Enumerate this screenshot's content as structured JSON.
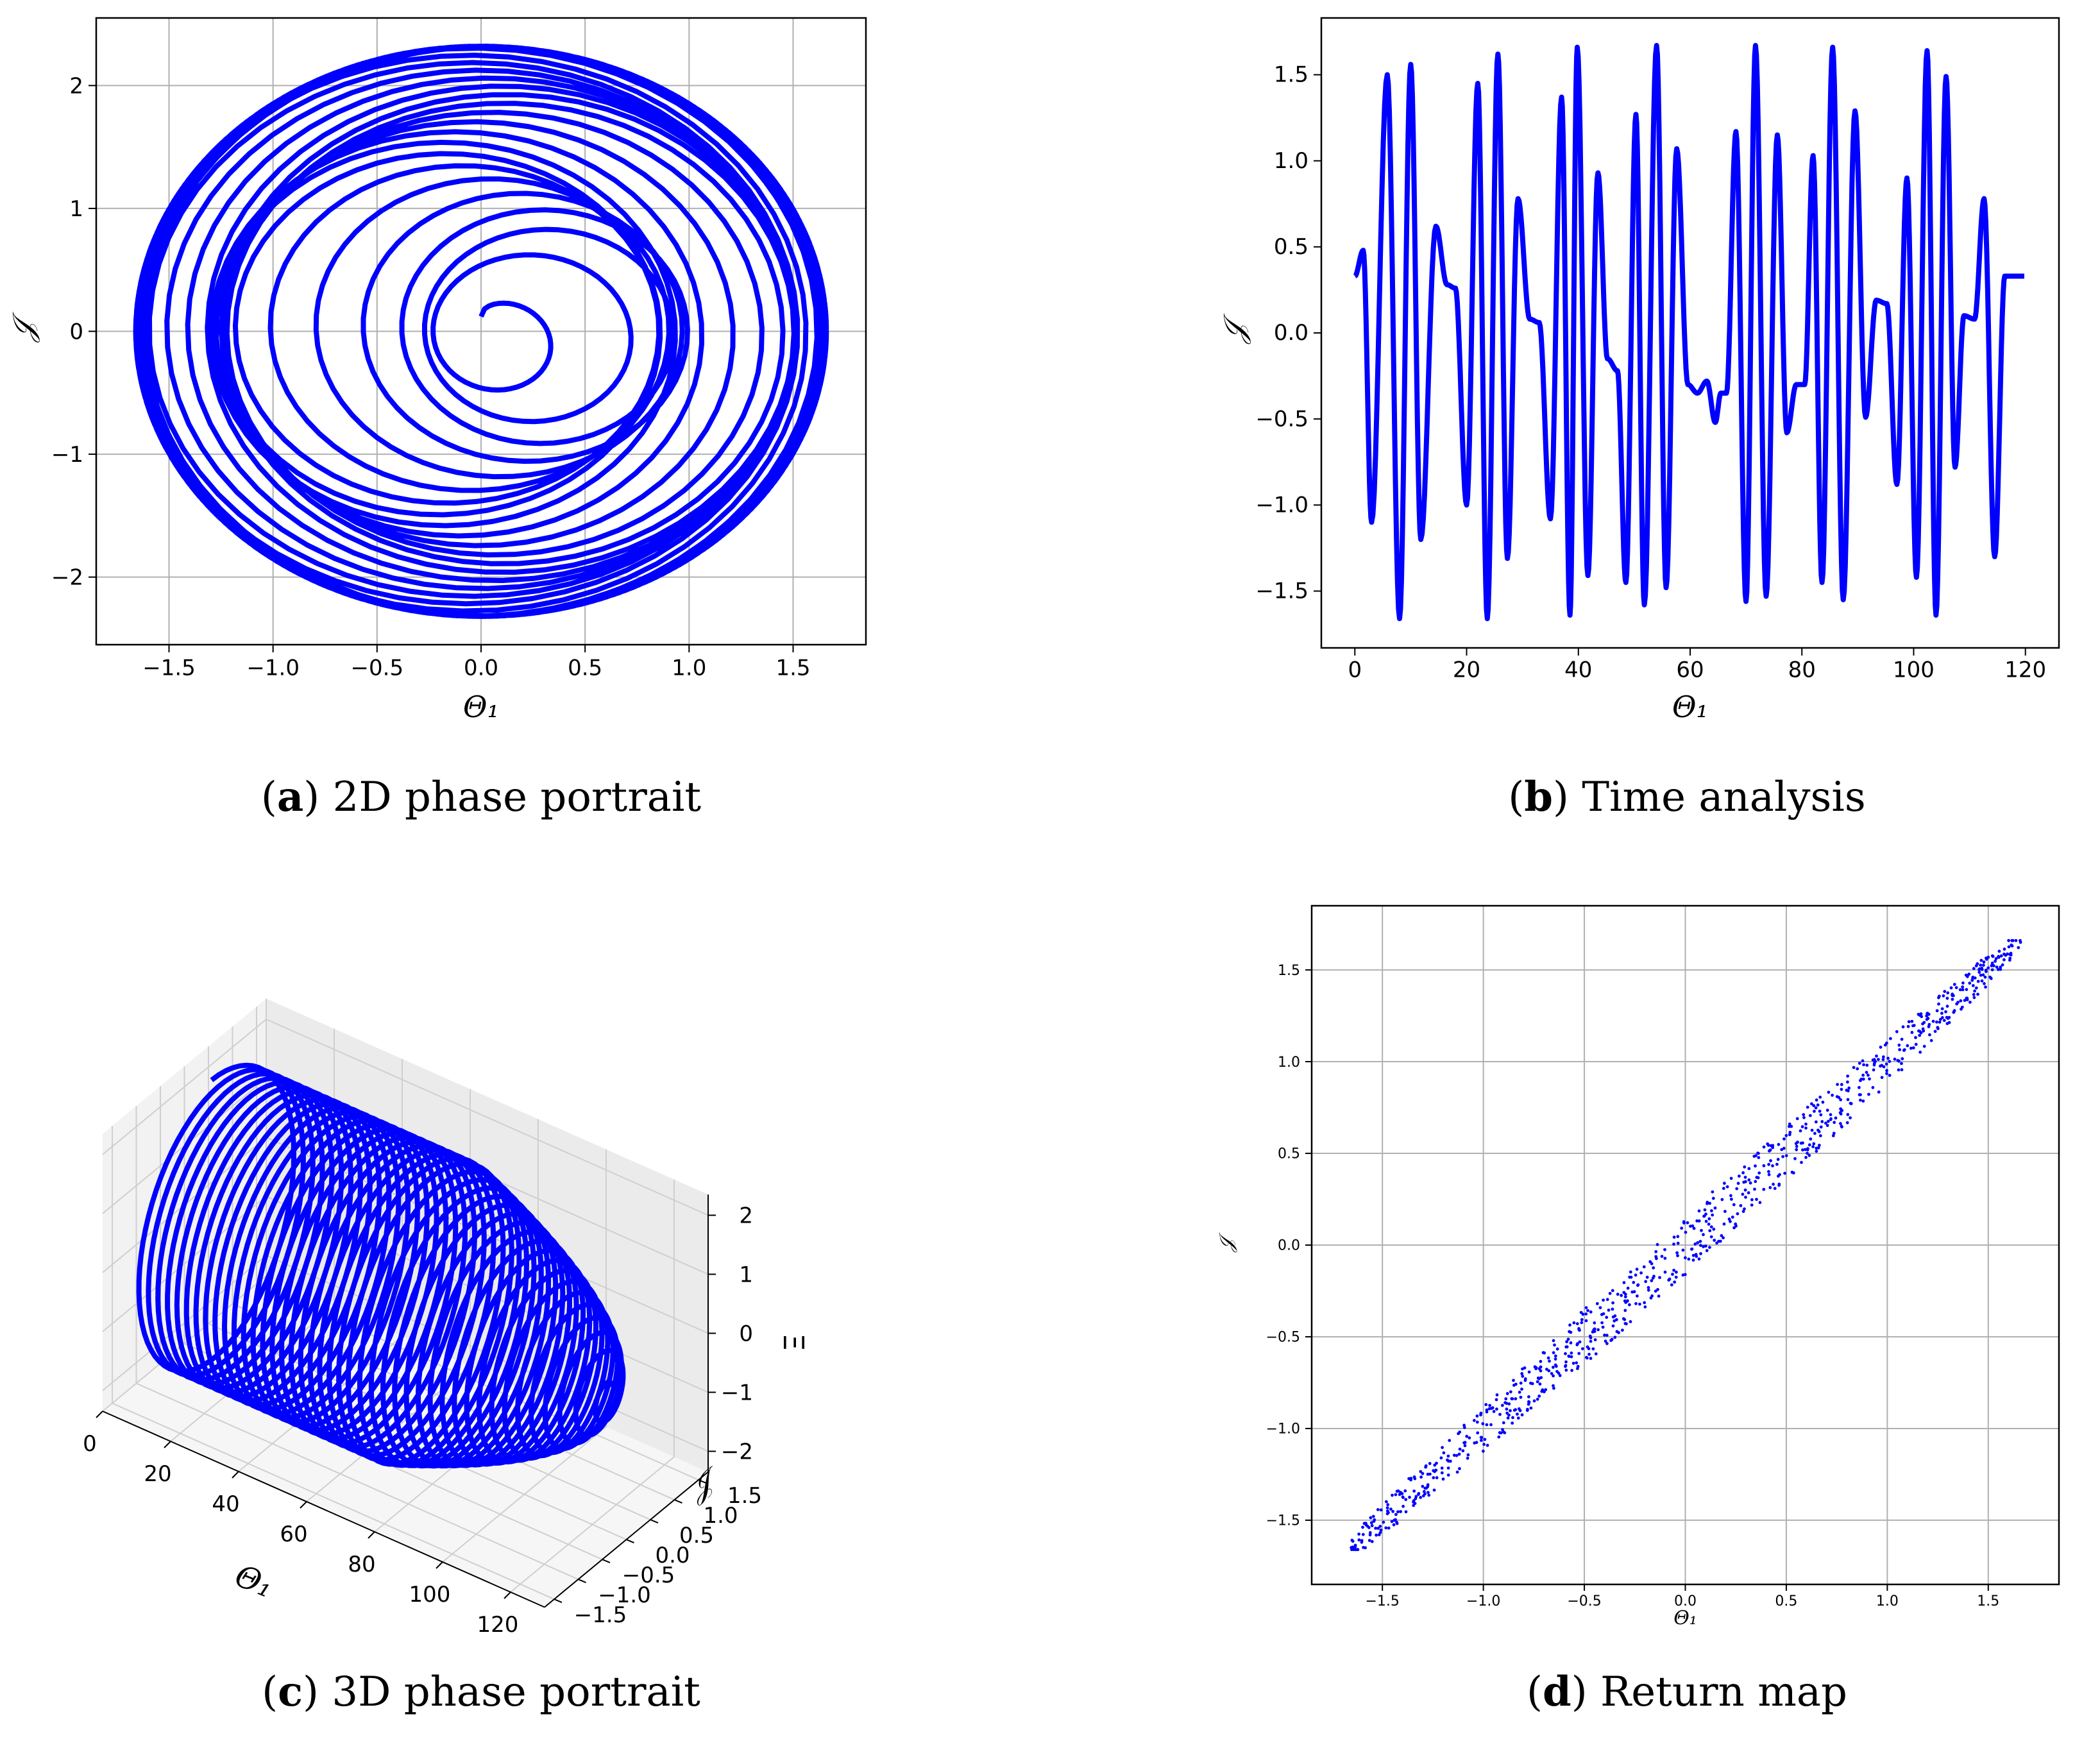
{
  "captions": {
    "a": {
      "letter": "a",
      "text": " 2D phase portrait"
    },
    "b": {
      "letter": "b",
      "text": " Time analysis"
    },
    "c": {
      "letter": "c",
      "text": " 3D phase portrait"
    },
    "d": {
      "letter": "d",
      "text": " Return map"
    }
  },
  "colors": {
    "series": "#0000ff",
    "grid": "#b0b0b0",
    "axis": "#000000"
  },
  "chart_data": [
    {
      "id": "a",
      "type": "line",
      "xlabel": "Θ₁",
      "ylabel": "𝒥",
      "xlim": [
        -1.85,
        1.85
      ],
      "ylim": [
        -2.55,
        2.55
      ],
      "xticks": [
        -1.5,
        -1.0,
        -0.5,
        0.0,
        0.5,
        1.0,
        1.5
      ],
      "xtick_labels": [
        "−1.5",
        "−1.0",
        "−0.5",
        "0.0",
        "0.5",
        "1.0",
        "1.5"
      ],
      "yticks": [
        -2,
        -1,
        0,
        1,
        2
      ],
      "ytick_labels": [
        "−2",
        "−1",
        "0",
        "1",
        "2"
      ],
      "grid": true,
      "series": [
        {
          "x_amplitude": 1.66,
          "y_amplitude": 2.32,
          "x_offset_range": [
            -0.45,
            0.45
          ],
          "t_range": [
            0,
            120
          ]
        }
      ]
    },
    {
      "id": "b",
      "type": "line",
      "xlabel": "Θ₁",
      "ylabel": "𝒥",
      "xlim": [
        -6,
        126
      ],
      "ylim": [
        -1.83,
        1.83
      ],
      "xticks": [
        0,
        20,
        40,
        60,
        80,
        100,
        120
      ],
      "xtick_labels": [
        "0",
        "20",
        "40",
        "60",
        "80",
        "100",
        "120"
      ],
      "yticks": [
        -1.5,
        -1.0,
        -0.5,
        0.0,
        0.5,
        1.0,
        1.5
      ],
      "ytick_labels": [
        "−1.5",
        "−1.0",
        "−0.5",
        "0.0",
        "0.5",
        "1.0",
        "1.5"
      ],
      "grid": false,
      "peaks": {
        "t": [
          0,
          1.5,
          3,
          5.8,
          8,
          10,
          11.8,
          14.5,
          16.5,
          18,
          20,
          22,
          23.7,
          25.6,
          27.3,
          29.2,
          31.3,
          33,
          35,
          37,
          38.5,
          39.8,
          41.7,
          43.5,
          45.2,
          47,
          48.5,
          50.3,
          51.8,
          54,
          55.7,
          57.6,
          59.6,
          61.3,
          63,
          64.5,
          65.5,
          66.5,
          68.2,
          70,
          71.7,
          73.6,
          75.6,
          77.3,
          79,
          80.5,
          82,
          83.6,
          85.5,
          87.4,
          89.5,
          91.4,
          93.3,
          95.2,
          97,
          98.8,
          100.5,
          102.4,
          104,
          105.8,
          107.4,
          109,
          110.9,
          112.6,
          114.5,
          116.3,
          118,
          119.8
        ],
        "y": [
          0.33,
          0.48,
          -1.1,
          1.5,
          -1.66,
          1.56,
          -1.2,
          0.62,
          0.28,
          0.26,
          -1.0,
          1.45,
          -1.66,
          1.62,
          -1.31,
          0.78,
          0.08,
          0.06,
          -1.08,
          1.37,
          -1.64,
          1.66,
          -1.41,
          0.93,
          -0.15,
          -0.22,
          -1.45,
          1.27,
          -1.58,
          1.67,
          -1.48,
          1.07,
          -0.3,
          -0.35,
          -0.28,
          -0.52,
          -0.35,
          -0.35,
          1.17,
          -1.56,
          1.67,
          -1.53,
          1.15,
          -0.58,
          -0.3,
          -0.3,
          1.03,
          -1.45,
          1.66,
          -1.55,
          1.29,
          -0.49,
          0.19,
          0.17,
          -0.88,
          0.9,
          -1.42,
          1.64,
          -1.64,
          1.49,
          -0.78,
          0.1,
          0.08,
          0.78,
          -1.3,
          0.33,
          0.33,
          0.33
        ]
      }
    },
    {
      "id": "c",
      "type": "line",
      "projection": "3d",
      "xlabel": "Θ₁",
      "ylabel": "𝒥",
      "zlabel": "Ξ",
      "xticks": [
        0,
        20,
        40,
        60,
        80,
        100,
        120
      ],
      "xtick_labels": [
        "0",
        "20",
        "40",
        "60",
        "80",
        "100",
        "120"
      ],
      "yticks": [
        -1.5,
        -1.0,
        -0.5,
        0.0,
        0.5,
        1.0,
        1.5
      ],
      "ytick_labels": [
        "−1.5",
        "−1.0",
        "−0.5",
        "0.0",
        "0.5",
        "1.0",
        "1.5"
      ],
      "zticks": [
        -2,
        -1,
        0,
        1,
        2
      ],
      "ztick_labels": [
        "−2",
        "−1",
        "0",
        "1",
        "2"
      ],
      "grid": true
    },
    {
      "id": "d",
      "type": "scatter",
      "xlabel": "Θ₁",
      "ylabel": "𝒥",
      "xlim": [
        -1.85,
        1.85
      ],
      "ylim": [
        -1.85,
        1.85
      ],
      "xticks": [
        -1.5,
        -1.0,
        -0.5,
        0.0,
        0.5,
        1.0,
        1.5
      ],
      "xtick_labels": [
        "−1.5",
        "−1.0",
        "−0.5",
        "0.0",
        "0.5",
        "1.0",
        "1.5"
      ],
      "yticks": [
        -1.5,
        -1.0,
        -0.5,
        0.0,
        0.5,
        1.0,
        1.5
      ],
      "ytick_labels": [
        "−1.5",
        "−1.0",
        "−0.5",
        "0.0",
        "0.5",
        "1.0",
        "1.5"
      ],
      "grid": true,
      "point_range": [
        -1.66,
        1.66
      ],
      "band_half_width": 0.16,
      "point_count": 900
    }
  ]
}
